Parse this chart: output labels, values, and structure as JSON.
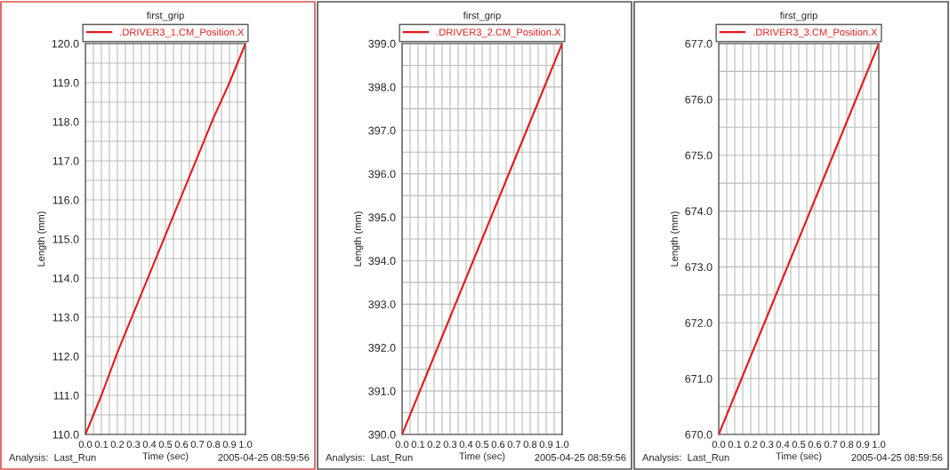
{
  "chart_data": [
    {
      "type": "line",
      "title": "first_grip",
      "xlabel": "Time (sec)",
      "ylabel": "Length (mm)",
      "annotations": [
        "Analysis:  Last_Run",
        "2005-04-25 08:59:56"
      ],
      "legend": "top",
      "grid": true,
      "marker": "none",
      "line_style": "solid",
      "x": [
        0,
        0.1,
        0.2,
        0.3,
        0.4,
        0.5,
        0.6,
        0.7,
        0.8,
        0.9,
        1.0
      ],
      "series": [
        {
          "name": ".DRIVER3_1.CM_Position.X",
          "color": "#e31a1c",
          "values": [
            110.0,
            111.0,
            112.1,
            113.1,
            114.1,
            115.1,
            116.1,
            117.1,
            118.1,
            119.0,
            120.0
          ]
        }
      ],
      "xlim": [
        0,
        1
      ],
      "ylim": [
        110,
        120
      ],
      "xticks": [
        {
          "value": 0,
          "label": "0.0"
        },
        {
          "value": 0.05,
          "label": null
        },
        {
          "value": 0.1,
          "label": "0.1"
        },
        {
          "value": 0.15,
          "label": null
        },
        {
          "value": 0.2,
          "label": "0.2"
        },
        {
          "value": 0.25,
          "label": null
        },
        {
          "value": 0.3,
          "label": "0.3"
        },
        {
          "value": 0.35,
          "label": null
        },
        {
          "value": 0.4,
          "label": "0.4"
        },
        {
          "value": 0.45,
          "label": null
        },
        {
          "value": 0.5,
          "label": "0.5"
        },
        {
          "value": 0.55,
          "label": null
        },
        {
          "value": 0.6,
          "label": "0.6"
        },
        {
          "value": 0.65,
          "label": null
        },
        {
          "value": 0.7,
          "label": "0.7"
        },
        {
          "value": 0.75,
          "label": null
        },
        {
          "value": 0.8,
          "label": "0.8"
        },
        {
          "value": 0.85,
          "label": null
        },
        {
          "value": 0.9,
          "label": "0.9"
        },
        {
          "value": 0.95,
          "label": null
        },
        {
          "value": 1.0,
          "label": "1.0"
        }
      ],
      "yticks": [
        {
          "value": 110,
          "label": "110.0"
        },
        {
          "value": 110.5,
          "label": null
        },
        {
          "value": 111,
          "label": "111.0"
        },
        {
          "value": 111.5,
          "label": null
        },
        {
          "value": 112,
          "label": "112.0"
        },
        {
          "value": 112.5,
          "label": null
        },
        {
          "value": 113,
          "label": "113.0"
        },
        {
          "value": 113.5,
          "label": null
        },
        {
          "value": 114,
          "label": "114.0"
        },
        {
          "value": 114.5,
          "label": null
        },
        {
          "value": 115,
          "label": "115.0"
        },
        {
          "value": 115.5,
          "label": null
        },
        {
          "value": 116,
          "label": "116.0"
        },
        {
          "value": 116.5,
          "label": null
        },
        {
          "value": 117,
          "label": "117.0"
        },
        {
          "value": 117.5,
          "label": null
        },
        {
          "value": 118,
          "label": "118.0"
        },
        {
          "value": 118.5,
          "label": null
        },
        {
          "value": 119,
          "label": "119.0"
        },
        {
          "value": 119.5,
          "label": null
        },
        {
          "value": 120,
          "label": "120.0"
        }
      ]
    },
    {
      "type": "line",
      "title": "first_grip",
      "xlabel": "Time (sec)",
      "ylabel": "Length (mm)",
      "annotations": [
        "Analysis:  Last_Run",
        "2005-04-25 08:59:56"
      ],
      "legend": "top",
      "grid": true,
      "marker": "none",
      "line_style": "solid",
      "x": [
        0,
        0.1,
        0.2,
        0.3,
        0.4,
        0.5,
        0.6,
        0.7,
        0.8,
        0.9,
        1.0
      ],
      "series": [
        {
          "name": ".DRIVER3_2.CM_Position.X",
          "color": "#e31a1c",
          "values": [
            390.0,
            390.9,
            391.8,
            392.7,
            393.6,
            394.5,
            395.4,
            396.3,
            397.2,
            398.1,
            399.0
          ]
        }
      ],
      "xlim": [
        0,
        1
      ],
      "ylim": [
        390,
        399
      ],
      "xticks": [
        {
          "value": 0,
          "label": "0.0"
        },
        {
          "value": 0.05,
          "label": null
        },
        {
          "value": 0.1,
          "label": "0.1"
        },
        {
          "value": 0.15,
          "label": null
        },
        {
          "value": 0.2,
          "label": "0.2"
        },
        {
          "value": 0.25,
          "label": null
        },
        {
          "value": 0.3,
          "label": "0.3"
        },
        {
          "value": 0.35,
          "label": null
        },
        {
          "value": 0.4,
          "label": "0.4"
        },
        {
          "value": 0.45,
          "label": null
        },
        {
          "value": 0.5,
          "label": "0.5"
        },
        {
          "value": 0.55,
          "label": null
        },
        {
          "value": 0.6,
          "label": "0.6"
        },
        {
          "value": 0.65,
          "label": null
        },
        {
          "value": 0.7,
          "label": "0.7"
        },
        {
          "value": 0.75,
          "label": null
        },
        {
          "value": 0.8,
          "label": "0.8"
        },
        {
          "value": 0.85,
          "label": null
        },
        {
          "value": 0.9,
          "label": "0.9"
        },
        {
          "value": 0.95,
          "label": null
        },
        {
          "value": 1.0,
          "label": "1.0"
        }
      ],
      "yticks": [
        {
          "value": 390,
          "label": "390.0"
        },
        {
          "value": 390.5,
          "label": null
        },
        {
          "value": 391,
          "label": "391.0"
        },
        {
          "value": 391.5,
          "label": null
        },
        {
          "value": 392,
          "label": "392.0"
        },
        {
          "value": 392.5,
          "label": null
        },
        {
          "value": 393,
          "label": "393.0"
        },
        {
          "value": 393.5,
          "label": null
        },
        {
          "value": 394,
          "label": "394.0"
        },
        {
          "value": 394.5,
          "label": null
        },
        {
          "value": 395,
          "label": "395.0"
        },
        {
          "value": 395.5,
          "label": null
        },
        {
          "value": 396,
          "label": "396.0"
        },
        {
          "value": 396.5,
          "label": null
        },
        {
          "value": 397,
          "label": "397.0"
        },
        {
          "value": 397.5,
          "label": null
        },
        {
          "value": 398,
          "label": "398.0"
        },
        {
          "value": 398.5,
          "label": null
        },
        {
          "value": 399,
          "label": "399.0"
        }
      ]
    },
    {
      "type": "line",
      "title": "first_grip",
      "xlabel": "Time (sec)",
      "ylabel": "Length (mm)",
      "annotations": [
        "Analysis:  Last_Run",
        "2005-04-25 08:59:56"
      ],
      "legend": "top",
      "grid": true,
      "marker": "none",
      "line_style": "solid",
      "x": [
        0,
        0.1,
        0.2,
        0.3,
        0.4,
        0.5,
        0.6,
        0.7,
        0.8,
        0.9,
        1.0
      ],
      "series": [
        {
          "name": ".DRIVER3_3.CM_Position.X",
          "color": "#e31a1c",
          "values": [
            670.0,
            670.7,
            671.4,
            672.1,
            672.8,
            673.5,
            674.2,
            674.9,
            675.6,
            676.3,
            677.0
          ]
        }
      ],
      "xlim": [
        0,
        1
      ],
      "ylim": [
        670,
        677
      ],
      "xticks": [
        {
          "value": 0,
          "label": "0.0"
        },
        {
          "value": 0.05,
          "label": null
        },
        {
          "value": 0.1,
          "label": "0.1"
        },
        {
          "value": 0.15,
          "label": null
        },
        {
          "value": 0.2,
          "label": "0.2"
        },
        {
          "value": 0.25,
          "label": null
        },
        {
          "value": 0.3,
          "label": "0.3"
        },
        {
          "value": 0.35,
          "label": null
        },
        {
          "value": 0.4,
          "label": "0.4"
        },
        {
          "value": 0.45,
          "label": null
        },
        {
          "value": 0.5,
          "label": "0.5"
        },
        {
          "value": 0.55,
          "label": null
        },
        {
          "value": 0.6,
          "label": "0.6"
        },
        {
          "value": 0.65,
          "label": null
        },
        {
          "value": 0.7,
          "label": "0.7"
        },
        {
          "value": 0.75,
          "label": null
        },
        {
          "value": 0.8,
          "label": "0.8"
        },
        {
          "value": 0.85,
          "label": null
        },
        {
          "value": 0.9,
          "label": "0.9"
        },
        {
          "value": 0.95,
          "label": null
        },
        {
          "value": 1.0,
          "label": "1.0"
        }
      ],
      "yticks": [
        {
          "value": 670,
          "label": "670.0"
        },
        {
          "value": 670.5,
          "label": null
        },
        {
          "value": 671,
          "label": "671.0"
        },
        {
          "value": 671.5,
          "label": null
        },
        {
          "value": 672,
          "label": "672.0"
        },
        {
          "value": 672.5,
          "label": null
        },
        {
          "value": 673,
          "label": "673.0"
        },
        {
          "value": 673.5,
          "label": null
        },
        {
          "value": 674,
          "label": "674.0"
        },
        {
          "value": 674.5,
          "label": null
        },
        {
          "value": 675,
          "label": "675.0"
        },
        {
          "value": 675.5,
          "label": null
        },
        {
          "value": 676,
          "label": "676.0"
        },
        {
          "value": 676.5,
          "label": null
        },
        {
          "value": 677,
          "label": "677.0"
        }
      ]
    }
  ]
}
